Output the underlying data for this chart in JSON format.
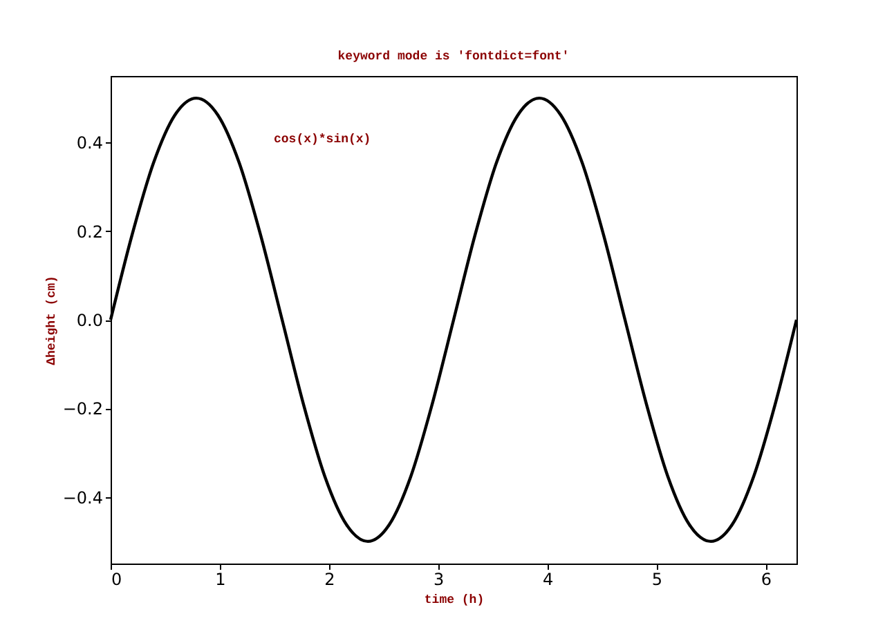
{
  "chart_data": {
    "type": "line",
    "title": "keyword mode is 'fontdict=font'",
    "xlabel": "time (h)",
    "ylabel": "Δheight (cm)",
    "annotations": [
      "cos(x)*sin(x)"
    ],
    "x": [
      0,
      0.196,
      0.393,
      0.589,
      0.785,
      0.982,
      1.178,
      1.374,
      1.571,
      1.767,
      1.963,
      2.16,
      2.356,
      2.553,
      2.749,
      2.945,
      3.142,
      3.338,
      3.534,
      3.731,
      3.927,
      4.123,
      4.32,
      4.516,
      4.712,
      4.909,
      5.105,
      5.301,
      5.498,
      5.694,
      5.89,
      6.087,
      6.283
    ],
    "series": [
      {
        "color": "#000000",
        "values": [
          0,
          0.191,
          0.354,
          0.462,
          0.5,
          0.462,
          0.354,
          0.191,
          0,
          -0.191,
          -0.354,
          -0.462,
          -0.5,
          -0.462,
          -0.354,
          -0.191,
          0,
          0.191,
          0.354,
          0.462,
          0.5,
          0.462,
          0.354,
          0.191,
          0,
          -0.191,
          -0.354,
          -0.462,
          -0.5,
          -0.462,
          -0.354,
          -0.191,
          0
        ]
      }
    ],
    "xlim": [
      0,
      6.283
    ],
    "ylim": [
      -0.55,
      0.55
    ],
    "xticks": [
      0,
      1,
      2,
      3,
      4,
      5,
      6
    ],
    "yticks": [
      {
        "value": -0.4,
        "label": "−0.4"
      },
      {
        "value": -0.2,
        "label": "−0.2"
      },
      {
        "value": 0,
        "label": "0.0"
      },
      {
        "value": 0.2,
        "label": "0.2"
      },
      {
        "value": 0.4,
        "label": "0.4"
      }
    ],
    "grid": false
  }
}
